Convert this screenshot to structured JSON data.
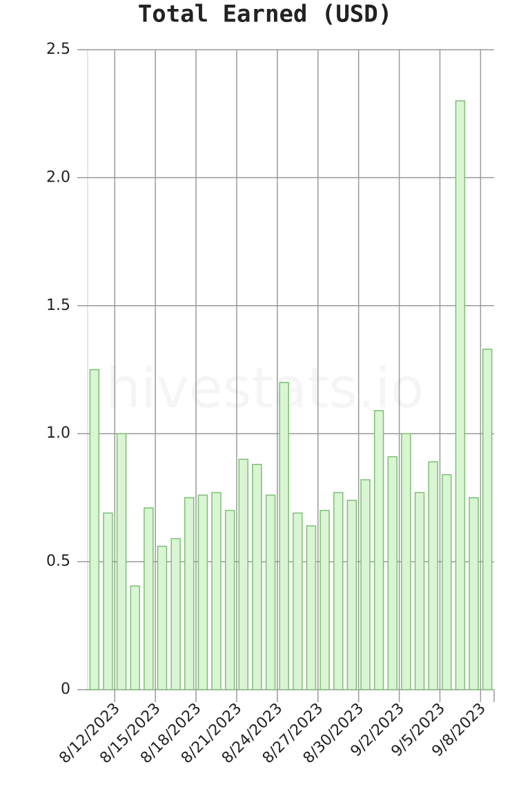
{
  "chart_data": {
    "type": "bar",
    "title": "Total Earned (USD)",
    "watermark": "hivestats.io",
    "categories": [
      null,
      null,
      "8/12/2023",
      null,
      null,
      "8/15/2023",
      null,
      null,
      "8/18/2023",
      null,
      null,
      "8/21/2023",
      null,
      null,
      "8/24/2023",
      null,
      null,
      "8/27/2023",
      null,
      null,
      "8/30/2023",
      null,
      null,
      "9/2/2023",
      null,
      null,
      "9/5/2023",
      null,
      null,
      "9/8/2023"
    ],
    "values": [
      1.25,
      0.69,
      1.0,
      0.405,
      0.71,
      0.56,
      0.59,
      0.75,
      0.76,
      0.77,
      0.7,
      0.9,
      0.88,
      0.76,
      1.2,
      0.69,
      0.64,
      0.7,
      0.77,
      0.74,
      0.82,
      1.09,
      0.91,
      1.0,
      0.77,
      0.89,
      0.84,
      2.3,
      0.75,
      1.33
    ],
    "color": "#d9f5d3",
    "edge_color": "#7cbf74",
    "ylim": [
      0,
      2.5
    ],
    "yticks": [
      0,
      0.5,
      {
        "value": 1,
        "label": "1.0"
      },
      1.5,
      {
        "value": 2,
        "label": "2.0"
      },
      2.5
    ],
    "grid": true
  }
}
